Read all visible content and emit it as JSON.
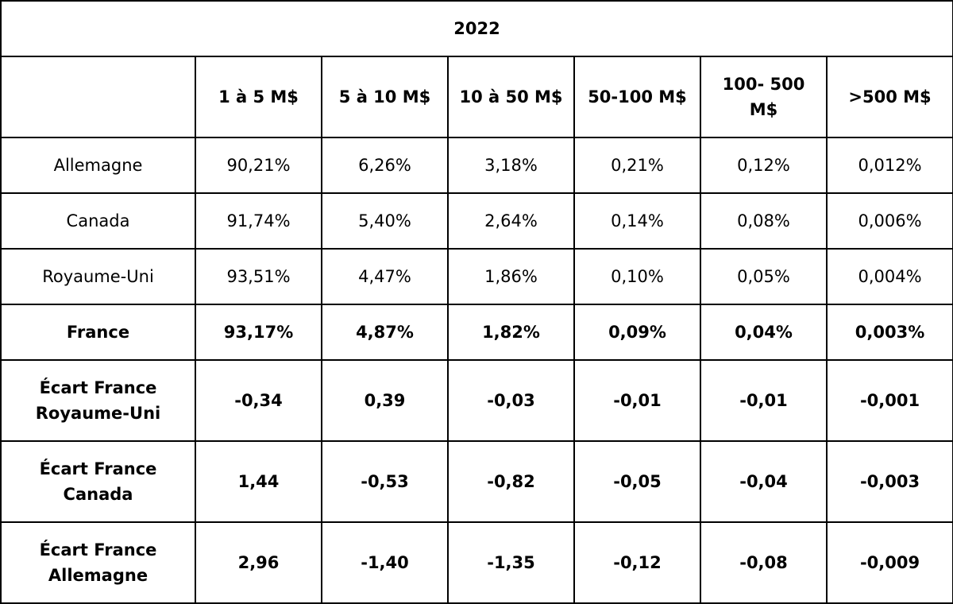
{
  "table": {
    "title": "2022",
    "header_corner": "",
    "columns": [
      "1 à 5 M$",
      "5 à 10 M$",
      "10 à 50 M$",
      "50-100 M$",
      "100- 500\nM$",
      ">500 M$"
    ],
    "rows": [
      {
        "label": "Allemagne",
        "bold": false,
        "values": [
          "90,21%",
          "6,26%",
          "3,18%",
          "0,21%",
          "0,12%",
          "0,012%"
        ]
      },
      {
        "label": "Canada",
        "bold": false,
        "values": [
          "91,74%",
          "5,40%",
          "2,64%",
          "0,14%",
          "0,08%",
          "0,006%"
        ]
      },
      {
        "label": "Royaume-Uni",
        "bold": false,
        "values": [
          "93,51%",
          "4,47%",
          "1,86%",
          "0,10%",
          "0,05%",
          "0,004%"
        ]
      },
      {
        "label": "France",
        "bold": true,
        "values": [
          "93,17%",
          "4,87%",
          "1,82%",
          "0,09%",
          "0,04%",
          "0,003%"
        ]
      },
      {
        "label": "Écart France\nRoyaume-Uni",
        "bold": true,
        "values": [
          "-0,34",
          "0,39",
          "-0,03",
          "-0,01",
          "-0,01",
          "-0,001"
        ]
      },
      {
        "label": "Écart France\nCanada",
        "bold": true,
        "values": [
          "1,44",
          "-0,53",
          "-0,82",
          "-0,05",
          "-0,04",
          "-0,003"
        ]
      },
      {
        "label": "Écart France\nAllemagne",
        "bold": true,
        "values": [
          "2,96",
          "-1,40",
          "-1,35",
          "-0,12",
          "-0,08",
          "-0,009"
        ]
      }
    ]
  }
}
